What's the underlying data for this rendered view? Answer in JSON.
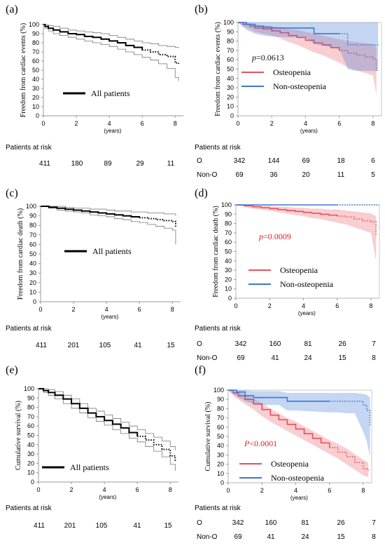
{
  "chart_data": [
    {
      "type": "line",
      "panel": "(a)",
      "ylabel": "Freedom from cardiac events (%)",
      "xlabel": "(years)",
      "x_ticks": [
        "0",
        "2",
        "4",
        "6",
        "8"
      ],
      "y_ticks": [
        "0",
        "10",
        "20",
        "30",
        "40",
        "50",
        "60",
        "70",
        "80",
        "90",
        "100"
      ],
      "xlim": [
        0,
        8.5
      ],
      "ylim": [
        0,
        100
      ],
      "legend": [
        "All patients"
      ],
      "series": [
        {
          "name": "All patients",
          "color": "#000000",
          "x": [
            0,
            0.1,
            0.3,
            0.6,
            1,
            1.5,
            2,
            2.5,
            3,
            3.5,
            4,
            4.5,
            5,
            5.5,
            6,
            6.5,
            7,
            7.5,
            8,
            8.2
          ],
          "y": [
            100,
            98,
            96,
            94,
            92,
            90,
            89,
            87,
            86,
            84,
            82,
            80,
            77,
            75,
            72,
            70,
            67,
            65,
            58,
            57
          ],
          "ci_upper": [
            100,
            100,
            99,
            98,
            96,
            94,
            93,
            92,
            91,
            90,
            88,
            86,
            84,
            82,
            80,
            79,
            77,
            76,
            75,
            74
          ],
          "ci_lower": [
            100,
            96,
            93,
            90,
            88,
            86,
            84,
            82,
            80,
            78,
            76,
            73,
            70,
            67,
            64,
            61,
            57,
            52,
            42,
            38
          ]
        }
      ],
      "risk_table": {
        "title": "Patients at risk",
        "rows": [
          {
            "label": "",
            "values": [
              "411",
              "180",
              "89",
              "29",
              "11"
            ]
          }
        ]
      }
    },
    {
      "type": "line",
      "panel": "(b)",
      "ylabel": "Freedom from cardiac events (%)",
      "xlabel": "(years)",
      "x_ticks": [
        "0",
        "2",
        "4",
        "6",
        "8"
      ],
      "y_ticks": [
        "0",
        "10",
        "20",
        "30",
        "40",
        "50",
        "60",
        "70",
        "80",
        "90",
        "100"
      ],
      "xlim": [
        0,
        8.5
      ],
      "ylim": [
        0,
        100
      ],
      "p_value": "p=0.0613",
      "legend": [
        "Osteopenia",
        "Non-osteopenia"
      ],
      "series": [
        {
          "name": "Osteopenia",
          "color": "#e8505b",
          "x": [
            0,
            0.3,
            0.7,
            1,
            1.5,
            2,
            2.5,
            3,
            3.5,
            4,
            4.5,
            5,
            5.5,
            6,
            6.5,
            7,
            7.5,
            8,
            8.2
          ],
          "y": [
            100,
            98,
            96,
            94,
            93,
            91,
            89,
            86,
            84,
            81,
            78,
            76,
            73,
            70,
            67,
            65,
            63,
            61,
            47
          ],
          "ci_upper": [
            100,
            100,
            99,
            98,
            97,
            96,
            95,
            93,
            92,
            90,
            88,
            86,
            84,
            82,
            80,
            79,
            78,
            77,
            73
          ],
          "ci_lower": [
            100,
            96,
            93,
            90,
            88,
            86,
            83,
            79,
            76,
            72,
            68,
            65,
            61,
            57,
            52,
            49,
            46,
            43,
            22
          ]
        },
        {
          "name": "Non-osteopenia",
          "color": "#3a78d4",
          "x": [
            0,
            0.5,
            1,
            1.5,
            2,
            3,
            4,
            4.5,
            5,
            6,
            6.5,
            7,
            8,
            8.3
          ],
          "y": [
            100,
            98,
            96,
            95,
            94,
            94,
            94,
            88,
            88,
            88,
            76,
            76,
            76,
            76
          ],
          "ci_upper": [
            100,
            100,
            100,
            100,
            100,
            100,
            100,
            100,
            100,
            100,
            100,
            100,
            100,
            100
          ],
          "ci_lower": [
            100,
            92,
            88,
            86,
            85,
            84,
            84,
            77,
            75,
            72,
            50,
            48,
            48,
            48
          ]
        }
      ],
      "risk_table": {
        "title": "Patients at risk",
        "rows": [
          {
            "label": "O",
            "values": [
              "342",
              "144",
              "69",
              "18",
              "6"
            ]
          },
          {
            "label": "Non-O",
            "values": [
              "69",
              "36",
              "20",
              "11",
              "5"
            ]
          }
        ]
      }
    },
    {
      "type": "line",
      "panel": "(c)",
      "ylabel": "Freedom from cardiac death (%)",
      "xlabel": "(years)",
      "x_ticks": [
        "0",
        "2",
        "4",
        "6",
        "8"
      ],
      "y_ticks": [
        "0",
        "10",
        "20",
        "30",
        "40",
        "50",
        "60",
        "70",
        "80",
        "90",
        "100"
      ],
      "xlim": [
        0,
        8.5
      ],
      "ylim": [
        0,
        100
      ],
      "legend": [
        "All patients"
      ],
      "series": [
        {
          "name": "All patients",
          "color": "#000000",
          "x": [
            0,
            0.5,
            1,
            1.5,
            2,
            2.5,
            3,
            3.5,
            4,
            4.5,
            5,
            5.5,
            6,
            6.5,
            7,
            7.5,
            8,
            8.2
          ],
          "y": [
            100,
            99,
            98,
            97,
            96,
            95,
            94,
            93,
            92,
            91,
            90,
            89,
            88,
            87,
            86,
            85,
            84,
            78
          ],
          "ci_upper": [
            100,
            100,
            100,
            99,
            98,
            98,
            97,
            97,
            96,
            95,
            95,
            94,
            94,
            93,
            93,
            92,
            92,
            90
          ],
          "ci_lower": [
            100,
            98,
            96,
            95,
            94,
            93,
            91,
            90,
            89,
            87,
            86,
            84,
            83,
            81,
            79,
            77,
            75,
            60
          ]
        }
      ],
      "risk_table": {
        "title": "Patients at risk",
        "rows": [
          {
            "label": "",
            "values": [
              "411",
              "201",
              "105",
              "41",
              "15"
            ]
          }
        ]
      }
    },
    {
      "type": "line",
      "panel": "(d)",
      "ylabel": "Freedom from cardiac death (%)",
      "xlabel": "(years)",
      "x_ticks": [
        "0",
        "2",
        "4",
        "6",
        "8"
      ],
      "y_ticks": [
        "0",
        "10",
        "20",
        "30",
        "40",
        "50",
        "60",
        "70",
        "80",
        "90",
        "100"
      ],
      "xlim": [
        0,
        8.5
      ],
      "ylim": [
        0,
        100
      ],
      "p_value": "p=0.0009",
      "legend": [
        "Osteopenia",
        "Non-osteopenia"
      ],
      "series": [
        {
          "name": "Osteopenia",
          "color": "#e8505b",
          "x": [
            0,
            0.5,
            1,
            1.5,
            2,
            2.5,
            3,
            3.5,
            4,
            4.5,
            5,
            5.5,
            6,
            6.5,
            7,
            7.5,
            8,
            8.3
          ],
          "y": [
            100,
            99,
            98,
            97,
            96,
            95,
            94,
            93,
            92,
            91,
            90,
            89,
            88,
            87,
            85,
            83,
            82,
            68
          ],
          "ci_upper": [
            100,
            100,
            100,
            99,
            99,
            98,
            98,
            97,
            97,
            96,
            96,
            95,
            95,
            94,
            93,
            92,
            91,
            88
          ],
          "ci_lower": [
            100,
            98,
            96,
            95,
            94,
            92,
            91,
            89,
            88,
            86,
            85,
            83,
            81,
            79,
            76,
            73,
            70,
            40
          ]
        },
        {
          "name": "Non-osteopenia",
          "color": "#3a78d4",
          "x": [
            0,
            2,
            4,
            6,
            8,
            8.5
          ],
          "y": [
            100,
            100,
            100,
            100,
            100,
            100
          ],
          "ci_upper": [
            100,
            100,
            100,
            100,
            100,
            100
          ],
          "ci_lower": [
            100,
            100,
            100,
            100,
            100,
            100
          ]
        }
      ],
      "risk_table": {
        "title": "Patients at risk",
        "rows": [
          {
            "label": "O",
            "values": [
              "342",
              "160",
              "81",
              "26",
              "7"
            ]
          },
          {
            "label": "Non-O",
            "values": [
              "69",
              "41",
              "24",
              "15",
              "8"
            ]
          }
        ]
      }
    },
    {
      "type": "line",
      "panel": "(e)",
      "ylabel": "Cumulative survival (%)",
      "xlabel": "(years)",
      "x_ticks": [
        "0",
        "2",
        "4",
        "6",
        "8"
      ],
      "y_ticks": [
        "0",
        "10",
        "20",
        "30",
        "40",
        "50",
        "60",
        "70",
        "80",
        "90",
        "100"
      ],
      "xlim": [
        0,
        8.5
      ],
      "ylim": [
        0,
        100
      ],
      "legend": [
        "All patients"
      ],
      "series": [
        {
          "name": "All patients",
          "color": "#000000",
          "x": [
            0,
            0.3,
            0.6,
            1,
            1.5,
            2,
            2.5,
            3,
            3.5,
            4,
            4.5,
            5,
            5.5,
            6,
            6.5,
            7,
            7.5,
            8,
            8.3
          ],
          "y": [
            100,
            98,
            96,
            93,
            89,
            84,
            79,
            74,
            70,
            66,
            62,
            58,
            53,
            49,
            45,
            40,
            35,
            28,
            22
          ],
          "ci_upper": [
            100,
            100,
            99,
            97,
            93,
            89,
            84,
            79,
            76,
            72,
            68,
            64,
            60,
            56,
            52,
            48,
            44,
            38,
            34
          ],
          "ci_lower": [
            100,
            96,
            93,
            89,
            84,
            79,
            74,
            69,
            65,
            61,
            56,
            52,
            47,
            43,
            38,
            33,
            27,
            19,
            12
          ]
        }
      ],
      "risk_table": {
        "title": "Patients at risk",
        "rows": [
          {
            "label": "",
            "values": [
              "411",
              "201",
              "105",
              "41",
              "15"
            ]
          }
        ]
      }
    },
    {
      "type": "line",
      "panel": "(f)",
      "ylabel": "Cumulative survival (%)",
      "xlabel": "(years)",
      "x_ticks": [
        "0",
        "2",
        "4",
        "6",
        "8"
      ],
      "y_ticks": [
        "0",
        "10",
        "20",
        "30",
        "40",
        "50",
        "60",
        "70",
        "80",
        "90",
        "100"
      ],
      "xlim": [
        0,
        8.5
      ],
      "ylim": [
        0,
        100
      ],
      "p_value": "P<0.0001",
      "legend": [
        "Osteopenia",
        "Non-osteopenia"
      ],
      "series": [
        {
          "name": "Osteopenia",
          "color": "#e8505b",
          "x": [
            0,
            0.3,
            0.6,
            1,
            1.5,
            2,
            2.5,
            3,
            3.5,
            4,
            4.5,
            5,
            5.5,
            6,
            6.5,
            7,
            7.5,
            8,
            8.3
          ],
          "y": [
            100,
            97,
            94,
            90,
            85,
            79,
            73,
            68,
            63,
            58,
            53,
            48,
            43,
            38,
            33,
            28,
            22,
            15,
            13
          ],
          "ci_upper": [
            100,
            99,
            98,
            95,
            91,
            86,
            80,
            75,
            70,
            66,
            61,
            56,
            51,
            46,
            42,
            37,
            31,
            25,
            22
          ],
          "ci_lower": [
            100,
            94,
            90,
            85,
            79,
            72,
            66,
            61,
            56,
            51,
            46,
            41,
            36,
            31,
            26,
            20,
            14,
            8,
            6
          ]
        },
        {
          "name": "Non-osteopenia",
          "color": "#3a78d4",
          "x": [
            0,
            0.5,
            1,
            1.5,
            2,
            3,
            3.5,
            4,
            5,
            6,
            6.5,
            7,
            7.5,
            8,
            8.2,
            8.4
          ],
          "y": [
            100,
            98,
            94,
            92,
            92,
            92,
            88,
            88,
            88,
            88,
            88,
            88,
            88,
            84,
            78,
            62
          ],
          "ci_upper": [
            100,
            100,
            100,
            99,
            99,
            99,
            97,
            97,
            97,
            97,
            97,
            97,
            97,
            96,
            95,
            92
          ],
          "ci_lower": [
            100,
            93,
            88,
            85,
            84,
            84,
            78,
            78,
            77,
            76,
            76,
            75,
            75,
            55,
            45,
            28
          ]
        }
      ],
      "risk_table": {
        "title": "Patients at risk",
        "rows": [
          {
            "label": "O",
            "values": [
              "342",
              "160",
              "81",
              "26",
              "7"
            ]
          },
          {
            "label": "Non-O",
            "values": [
              "69",
              "41",
              "24",
              "15",
              "8"
            ]
          }
        ]
      }
    }
  ]
}
